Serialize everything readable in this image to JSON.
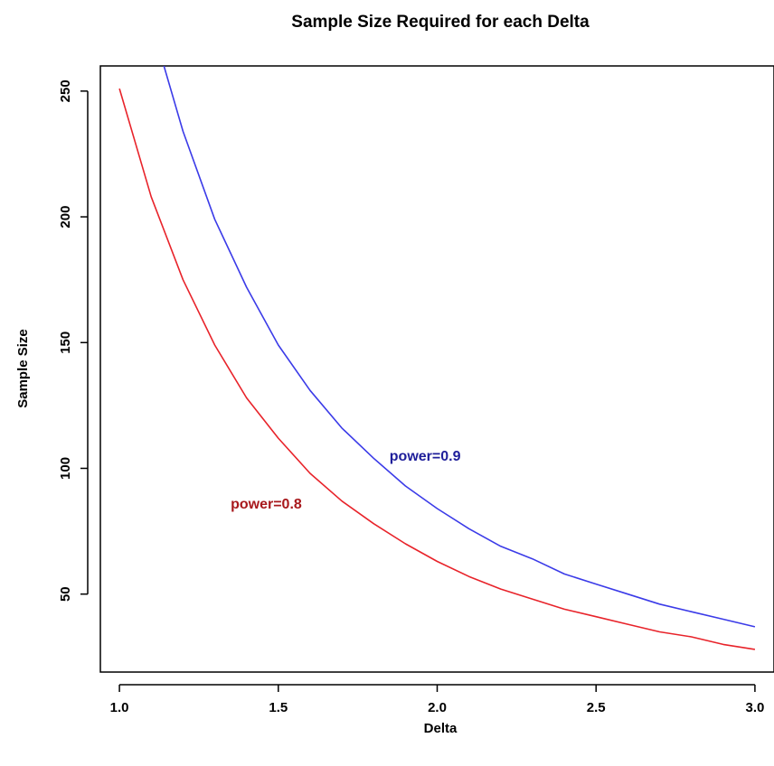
{
  "chart_data": {
    "type": "line",
    "title": "Sample Size Required for each Delta",
    "xlabel": "Delta",
    "ylabel": "Sample Size",
    "xlim": [
      0.94,
      3.06
    ],
    "ylim": [
      19,
      260
    ],
    "x_ticks": [
      1.0,
      1.5,
      2.0,
      2.5,
      3.0
    ],
    "x_tick_labels": [
      "1.0",
      "1.5",
      "2.0",
      "2.5",
      "3.0"
    ],
    "y_ticks": [
      50,
      100,
      150,
      200,
      250
    ],
    "y_tick_labels": [
      "50",
      "100",
      "150",
      "200",
      "250"
    ],
    "grid": false,
    "legend": "none",
    "series": [
      {
        "name": "power=0.8",
        "color": "#e8232a",
        "label_color": "#a8181c",
        "x": [
          1.0,
          1.1,
          1.2,
          1.3,
          1.4,
          1.5,
          1.6,
          1.7,
          1.8,
          1.9,
          2.0,
          2.1,
          2.2,
          2.3,
          2.4,
          2.5,
          2.6,
          2.7,
          2.8,
          2.9,
          3.0
        ],
        "values": [
          251,
          208,
          175,
          149,
          128,
          112,
          98,
          87,
          78,
          70,
          63,
          57,
          52,
          48,
          44,
          41,
          38,
          35,
          33,
          30,
          28
        ]
      },
      {
        "name": "power=0.9",
        "color": "#3b3be8",
        "label_color": "#1e1e9a",
        "x": [
          1.14,
          1.2,
          1.3,
          1.4,
          1.5,
          1.6,
          1.7,
          1.8,
          1.9,
          2.0,
          2.1,
          2.2,
          2.3,
          2.4,
          2.5,
          2.6,
          2.7,
          2.8,
          2.9,
          3.0
        ],
        "values": [
          260,
          234,
          199,
          172,
          149,
          131,
          116,
          104,
          93,
          84,
          76,
          69,
          64,
          58,
          54,
          50,
          46,
          43,
          40,
          37
        ]
      }
    ],
    "annotations": [
      {
        "text": "power=0.8",
        "x": 1.35,
        "y": 84,
        "color": "#a8181c"
      },
      {
        "text": "power=0.9",
        "x": 1.85,
        "y": 103,
        "color": "#1e1e9a"
      }
    ]
  }
}
